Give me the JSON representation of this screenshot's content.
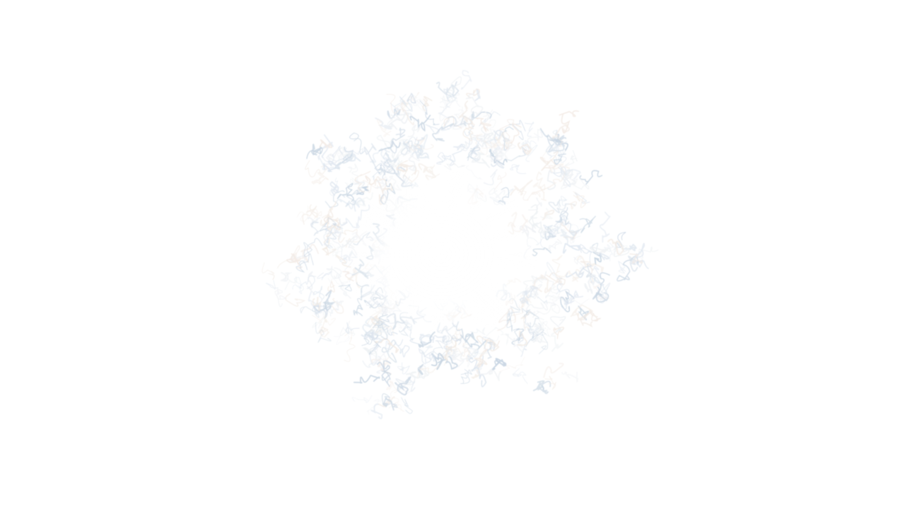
{
  "scene": {
    "background_color": "#ffffff",
    "subject": "white-tangled-fiber-cluster-icon",
    "stroke_colors": [
      "#c9d6e3",
      "#dfe7f0",
      "#eef1f4",
      "#f3ece6"
    ],
    "core_color": "#ffffff"
  }
}
